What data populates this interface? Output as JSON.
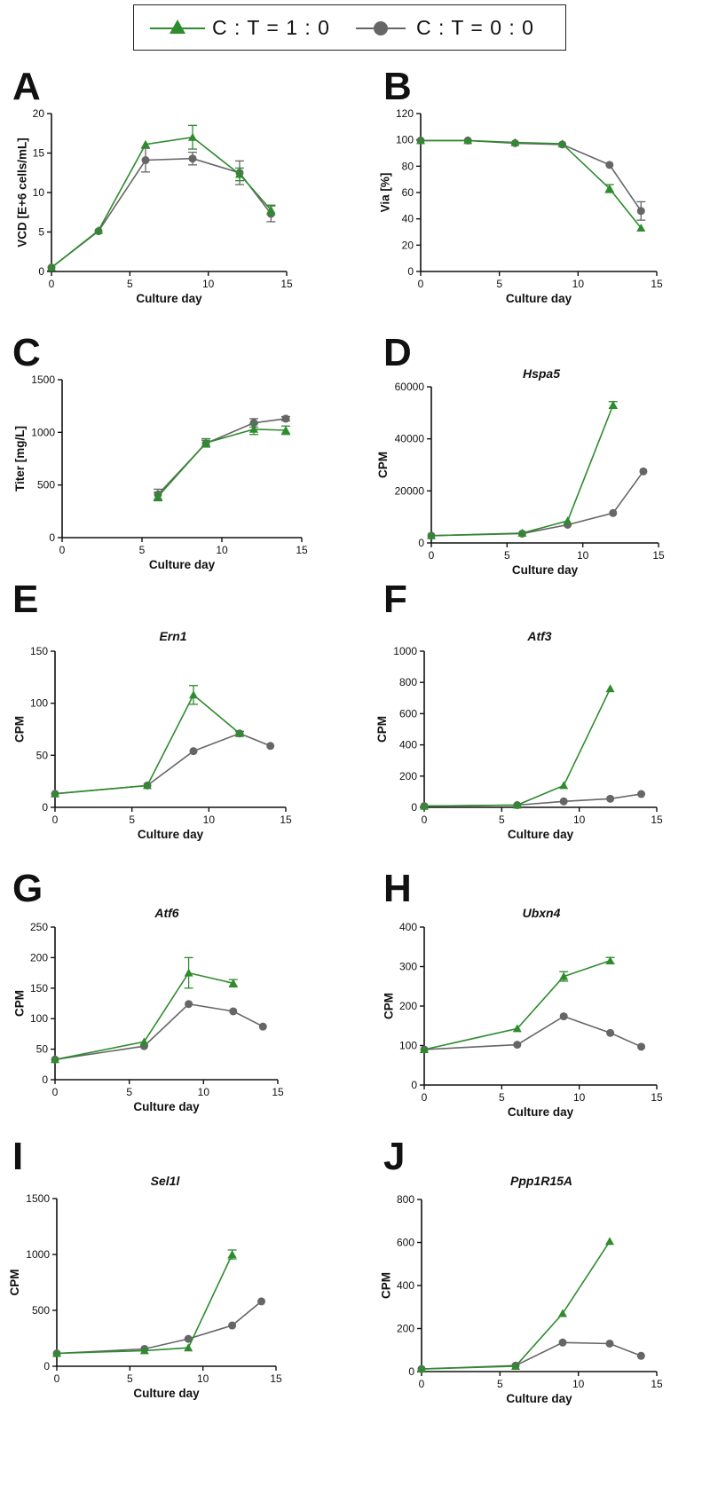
{
  "legend": {
    "entries": [
      {
        "label": "C : T = 1 : 0",
        "color": "#2e8b2e",
        "marker": "triangle"
      },
      {
        "label": "C : T = 0 : 0",
        "color": "#666666",
        "marker": "circle"
      }
    ]
  },
  "colors": {
    "series_a": "#2e8b2e",
    "series_b": "#666666",
    "axis": "#111111"
  },
  "chart_data": [
    {
      "id": "A",
      "letter": "A",
      "type": "line",
      "title": "",
      "xlabel": "Culture day",
      "ylabel": "VCD [E+6 cells/mL]",
      "xlim": [
        0,
        15
      ],
      "ylim": [
        0,
        20
      ],
      "xticks": [
        "0",
        "5",
        "10",
        "15"
      ],
      "yticks": [
        "0",
        "5",
        "10",
        "15",
        "20"
      ],
      "series": [
        {
          "name": "C : T = 1 : 0",
          "marker": "triangle",
          "color": "#2e8b2e",
          "x": [
            0,
            3,
            6,
            9,
            12,
            14
          ],
          "y": [
            0.5,
            5.2,
            16.1,
            17.0,
            12.3,
            7.8
          ],
          "err": [
            0,
            0,
            0,
            1.5,
            0.8,
            0.6
          ]
        },
        {
          "name": "C : T = 0 : 0",
          "marker": "circle",
          "color": "#666666",
          "x": [
            0,
            3,
            6,
            9,
            12,
            14
          ],
          "y": [
            0.5,
            5.1,
            14.1,
            14.3,
            12.5,
            7.3
          ],
          "err": [
            0,
            0,
            1.5,
            0.8,
            1.5,
            1.0
          ]
        }
      ]
    },
    {
      "id": "B",
      "letter": "B",
      "type": "line",
      "title": "",
      "xlabel": "Culture day",
      "ylabel": "Via [%]",
      "xlim": [
        0,
        15
      ],
      "ylim": [
        0,
        120
      ],
      "xticks": [
        "0",
        "5",
        "10",
        "15"
      ],
      "yticks": [
        "0",
        "20",
        "40",
        "60",
        "80",
        "100",
        "120"
      ],
      "series": [
        {
          "name": "C : T = 1 : 0",
          "marker": "triangle",
          "color": "#2e8b2e",
          "x": [
            0,
            3,
            6,
            9,
            12,
            14
          ],
          "y": [
            99.5,
            99.5,
            98,
            97,
            63,
            33
          ],
          "err": [
            0,
            0,
            0,
            0,
            3,
            0
          ]
        },
        {
          "name": "C : T = 0 : 0",
          "marker": "circle",
          "color": "#666666",
          "x": [
            0,
            3,
            6,
            9,
            12,
            14
          ],
          "y": [
            99.5,
            99.5,
            97.5,
            96.5,
            81,
            46
          ],
          "err": [
            0,
            0,
            0,
            0,
            0,
            7
          ]
        }
      ]
    },
    {
      "id": "C",
      "letter": "C",
      "type": "line",
      "title": "",
      "xlabel": "Culture day",
      "ylabel": "Titer [mg/L]",
      "xlim": [
        0,
        15
      ],
      "ylim": [
        0,
        1500
      ],
      "xticks": [
        "0",
        "5",
        "10",
        "15"
      ],
      "yticks": [
        "0",
        "500",
        "1000",
        "1500"
      ],
      "series": [
        {
          "name": "C : T = 1 : 0",
          "marker": "triangle",
          "color": "#2e8b2e",
          "x": [
            6,
            9,
            12,
            14
          ],
          "y": [
            390,
            900,
            1030,
            1020
          ],
          "err": [
            40,
            40,
            50,
            40
          ]
        },
        {
          "name": "C : T = 0 : 0",
          "marker": "circle",
          "color": "#666666",
          "x": [
            6,
            9,
            12,
            14
          ],
          "y": [
            410,
            895,
            1090,
            1130
          ],
          "err": [
            50,
            30,
            40,
            20
          ]
        }
      ]
    },
    {
      "id": "D",
      "letter": "D",
      "type": "line",
      "title": "Hspa5",
      "xlabel": "Culture day",
      "ylabel": "CPM",
      "xlim": [
        0,
        15
      ],
      "ylim": [
        0,
        60000
      ],
      "xticks": [
        "0",
        "5",
        "10",
        "15"
      ],
      "yticks": [
        "0",
        "20000",
        "40000",
        "60000"
      ],
      "series": [
        {
          "name": "C : T = 1 : 0",
          "marker": "triangle",
          "color": "#2e8b2e",
          "x": [
            0,
            6,
            9,
            12
          ],
          "y": [
            2800,
            3800,
            8500,
            53000
          ],
          "err": [
            0,
            0,
            0,
            1300
          ]
        },
        {
          "name": "C : T = 0 : 0",
          "marker": "circle",
          "color": "#666666",
          "x": [
            0,
            6,
            9,
            12,
            14
          ],
          "y": [
            2800,
            3600,
            7000,
            11500,
            27500
          ],
          "err": [
            0,
            0,
            0,
            0,
            0
          ]
        }
      ]
    },
    {
      "id": "E",
      "letter": "E",
      "type": "line",
      "title": "Ern1",
      "xlabel": "Culture day",
      "ylabel": "CPM",
      "xlim": [
        0,
        15
      ],
      "ylim": [
        0,
        150
      ],
      "xticks": [
        "0",
        "5",
        "10",
        "15"
      ],
      "yticks": [
        "0",
        "50",
        "100",
        "150"
      ],
      "series": [
        {
          "name": "C : T = 1 : 0",
          "marker": "triangle",
          "color": "#2e8b2e",
          "x": [
            0,
            6,
            9,
            12
          ],
          "y": [
            13,
            21,
            108,
            71
          ],
          "err": [
            0,
            0,
            9,
            2
          ]
        },
        {
          "name": "C : T = 0 : 0",
          "marker": "circle",
          "color": "#666666",
          "x": [
            0,
            6,
            9,
            12,
            14
          ],
          "y": [
            13,
            21,
            54,
            71,
            59
          ],
          "err": [
            0,
            0,
            0,
            0,
            0
          ]
        }
      ]
    },
    {
      "id": "F",
      "letter": "F",
      "type": "line",
      "title": "Atf3",
      "xlabel": "Culture day",
      "ylabel": "CPM",
      "xlim": [
        0,
        15
      ],
      "ylim": [
        0,
        1000
      ],
      "xticks": [
        "0",
        "5",
        "10",
        "15"
      ],
      "yticks": [
        "0",
        "200",
        "400",
        "600",
        "800",
        "1000"
      ],
      "series": [
        {
          "name": "C : T = 1 : 0",
          "marker": "triangle",
          "color": "#2e8b2e",
          "x": [
            0,
            6,
            9,
            12
          ],
          "y": [
            8,
            15,
            140,
            760
          ],
          "err": [
            0,
            0,
            0,
            0
          ]
        },
        {
          "name": "C : T = 0 : 0",
          "marker": "circle",
          "color": "#666666",
          "x": [
            0,
            6,
            9,
            12,
            14
          ],
          "y": [
            8,
            14,
            38,
            55,
            85
          ],
          "err": [
            0,
            0,
            0,
            0,
            0
          ]
        }
      ]
    },
    {
      "id": "G",
      "letter": "G",
      "type": "line",
      "title": "Atf6",
      "xlabel": "Culture day",
      "ylabel": "CPM",
      "xlim": [
        0,
        15
      ],
      "ylim": [
        0,
        250
      ],
      "xticks": [
        "0",
        "5",
        "10",
        "15"
      ],
      "yticks": [
        "0",
        "50",
        "100",
        "150",
        "200",
        "250"
      ],
      "series": [
        {
          "name": "C : T = 1 : 0",
          "marker": "triangle",
          "color": "#2e8b2e",
          "x": [
            0,
            6,
            9,
            12
          ],
          "y": [
            33,
            62,
            175,
            158
          ],
          "err": [
            0,
            0,
            25,
            6
          ]
        },
        {
          "name": "C : T = 0 : 0",
          "marker": "circle",
          "color": "#666666",
          "x": [
            0,
            6,
            9,
            12,
            14
          ],
          "y": [
            33,
            55,
            124,
            112,
            87
          ],
          "err": [
            0,
            0,
            0,
            0,
            0
          ]
        }
      ]
    },
    {
      "id": "H",
      "letter": "H",
      "type": "line",
      "title": "Ubxn4",
      "xlabel": "Culture day",
      "ylabel": "CPM",
      "xlim": [
        0,
        15
      ],
      "ylim": [
        0,
        400
      ],
      "xticks": [
        "0",
        "5",
        "10",
        "15"
      ],
      "yticks": [
        "0",
        "100",
        "200",
        "300",
        "400"
      ],
      "series": [
        {
          "name": "C : T = 1 : 0",
          "marker": "triangle",
          "color": "#2e8b2e",
          "x": [
            0,
            6,
            9,
            12
          ],
          "y": [
            90,
            143,
            275,
            315
          ],
          "err": [
            0,
            0,
            12,
            8
          ]
        },
        {
          "name": "C : T = 0 : 0",
          "marker": "circle",
          "color": "#666666",
          "x": [
            0,
            6,
            9,
            12,
            14
          ],
          "y": [
            90,
            102,
            174,
            132,
            97
          ],
          "err": [
            0,
            0,
            0,
            0,
            0
          ]
        }
      ]
    },
    {
      "id": "I",
      "letter": "I",
      "type": "line",
      "title": "Sel1l",
      "xlabel": "Culture day",
      "ylabel": "CPM",
      "xlim": [
        0,
        15
      ],
      "ylim": [
        0,
        1500
      ],
      "xticks": [
        "0",
        "5",
        "10",
        "15"
      ],
      "yticks": [
        "0",
        "500",
        "1000",
        "1500"
      ],
      "series": [
        {
          "name": "C : T = 1 : 0",
          "marker": "triangle",
          "color": "#2e8b2e",
          "x": [
            0,
            6,
            9,
            12
          ],
          "y": [
            115,
            140,
            165,
            1000
          ],
          "err": [
            0,
            0,
            0,
            40
          ]
        },
        {
          "name": "C : T = 0 : 0",
          "marker": "circle",
          "color": "#666666",
          "x": [
            0,
            6,
            9,
            12,
            14
          ],
          "y": [
            115,
            155,
            245,
            365,
            580
          ],
          "err": [
            0,
            0,
            0,
            0,
            0
          ]
        }
      ]
    },
    {
      "id": "J",
      "letter": "J",
      "type": "line",
      "title": "Ppp1R15A",
      "xlabel": "Culture day",
      "ylabel": "CPM",
      "xlim": [
        0,
        15
      ],
      "ylim": [
        0,
        800
      ],
      "xticks": [
        "0",
        "5",
        "10",
        "15"
      ],
      "yticks": [
        "0",
        "200",
        "400",
        "600",
        "800"
      ],
      "series": [
        {
          "name": "C : T = 1 : 0",
          "marker": "triangle",
          "color": "#2e8b2e",
          "x": [
            0,
            6,
            9,
            12
          ],
          "y": [
            12,
            25,
            270,
            605
          ],
          "err": [
            0,
            0,
            0,
            0
          ]
        },
        {
          "name": "C : T = 0 : 0",
          "marker": "circle",
          "color": "#666666",
          "x": [
            0,
            6,
            9,
            12,
            14
          ],
          "y": [
            12,
            28,
            135,
            130,
            73
          ],
          "err": [
            0,
            0,
            0,
            0,
            0
          ]
        }
      ]
    }
  ]
}
